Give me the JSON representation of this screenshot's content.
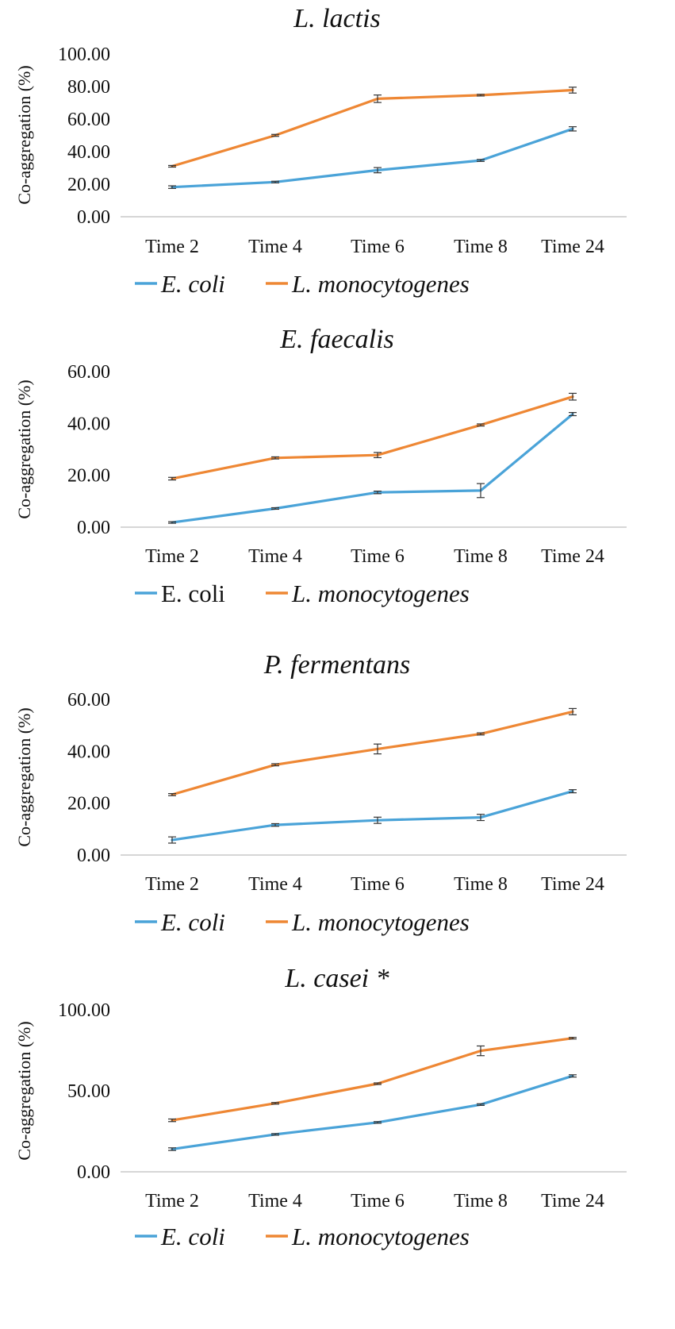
{
  "colors": {
    "ecoli": "#4aa3d8",
    "listeria": "#ee8734",
    "axis": "#c8c8c8",
    "errorbar": "#333333"
  },
  "chart_data": [
    {
      "type": "line",
      "title": "L. lactis",
      "ylabel": "Co-aggregation (%)",
      "xlabel": "",
      "categories": [
        "Time 2",
        "Time 4",
        "Time 6",
        "Time 8",
        "Time 24"
      ],
      "ylim": [
        0,
        100
      ],
      "yticks": [
        0,
        20,
        40,
        60,
        80,
        100
      ],
      "ytick_labels": [
        "0.00",
        "20.00",
        "40.00",
        "60.00",
        "80.00",
        "100.00"
      ],
      "series": [
        {
          "name": "E. coli",
          "legend_italic": true,
          "color": "#4aa3d8",
          "values": [
            18.2,
            21.3,
            28.6,
            34.6,
            54.0
          ],
          "errors": [
            0.8,
            0.5,
            1.6,
            0.6,
            1.3
          ]
        },
        {
          "name": "L. monocytogenes",
          "legend_italic": true,
          "color": "#ee8734",
          "values": [
            31.0,
            50.0,
            72.5,
            74.7,
            77.8
          ],
          "errors": [
            0.5,
            0.6,
            2.3,
            0.5,
            1.8
          ]
        }
      ]
    },
    {
      "type": "line",
      "title": "E. faecalis",
      "ylabel": "Co-aggregation (%)",
      "xlabel": "",
      "categories": [
        "Time 2",
        "Time 4",
        "Time 6",
        "Time 8",
        "Time 24"
      ],
      "ylim": [
        0,
        60
      ],
      "yticks": [
        0,
        20,
        40,
        60
      ],
      "ytick_labels": [
        "0.00",
        "20.00",
        "40.00",
        "60.00"
      ],
      "series": [
        {
          "name": "E. coli",
          "legend_italic": false,
          "color": "#4aa3d8",
          "values": [
            1.8,
            7.2,
            13.4,
            14.1,
            43.6
          ],
          "errors": [
            0.3,
            0.3,
            0.5,
            2.7,
            0.6
          ]
        },
        {
          "name": "L. monocytogenes",
          "legend_italic": true,
          "color": "#ee8734",
          "values": [
            18.7,
            26.7,
            27.8,
            39.4,
            50.3
          ],
          "errors": [
            0.5,
            0.4,
            1.0,
            0.4,
            1.3
          ]
        }
      ]
    },
    {
      "type": "line",
      "title": "P. fermentans",
      "ylabel": "Co-aggregation (%)",
      "xlabel": "",
      "categories": [
        "Time 2",
        "Time 4",
        "Time 6",
        "Time 8",
        "Time 24"
      ],
      "ylim": [
        0,
        60
      ],
      "yticks": [
        0,
        20,
        40,
        60
      ],
      "ytick_labels": [
        "0.00",
        "20.00",
        "40.00",
        "60.00"
      ],
      "series": [
        {
          "name": "E. coli",
          "legend_italic": true,
          "color": "#4aa3d8",
          "values": [
            5.8,
            11.6,
            13.4,
            14.5,
            24.6
          ],
          "errors": [
            1.2,
            0.5,
            1.2,
            1.2,
            0.6
          ]
        },
        {
          "name": "L. monocytogenes",
          "legend_italic": true,
          "color": "#ee8734",
          "values": [
            23.3,
            34.8,
            40.9,
            46.7,
            55.3
          ],
          "errors": [
            0.4,
            0.4,
            1.9,
            0.4,
            1.2
          ]
        }
      ]
    },
    {
      "type": "line",
      "title": "L. casei *",
      "ylabel": "Co-aggregation (%)",
      "xlabel": "",
      "categories": [
        "Time 2",
        "Time 4",
        "Time 6",
        "Time 8",
        "Time 24"
      ],
      "ylim": [
        0,
        100
      ],
      "yticks": [
        0,
        50,
        100
      ],
      "ytick_labels": [
        "0.00",
        "50.00",
        "100.00"
      ],
      "series": [
        {
          "name": "E. coli",
          "legend_italic": true,
          "color": "#4aa3d8",
          "values": [
            14.0,
            23.1,
            30.5,
            41.5,
            59.2
          ],
          "errors": [
            0.8,
            0.5,
            0.5,
            0.5,
            0.7
          ]
        },
        {
          "name": "L. monocytogenes",
          "legend_italic": true,
          "color": "#ee8734",
          "values": [
            31.8,
            42.3,
            54.4,
            74.7,
            82.5
          ],
          "errors": [
            0.8,
            0.5,
            0.5,
            3.0,
            0.5
          ]
        }
      ]
    }
  ]
}
